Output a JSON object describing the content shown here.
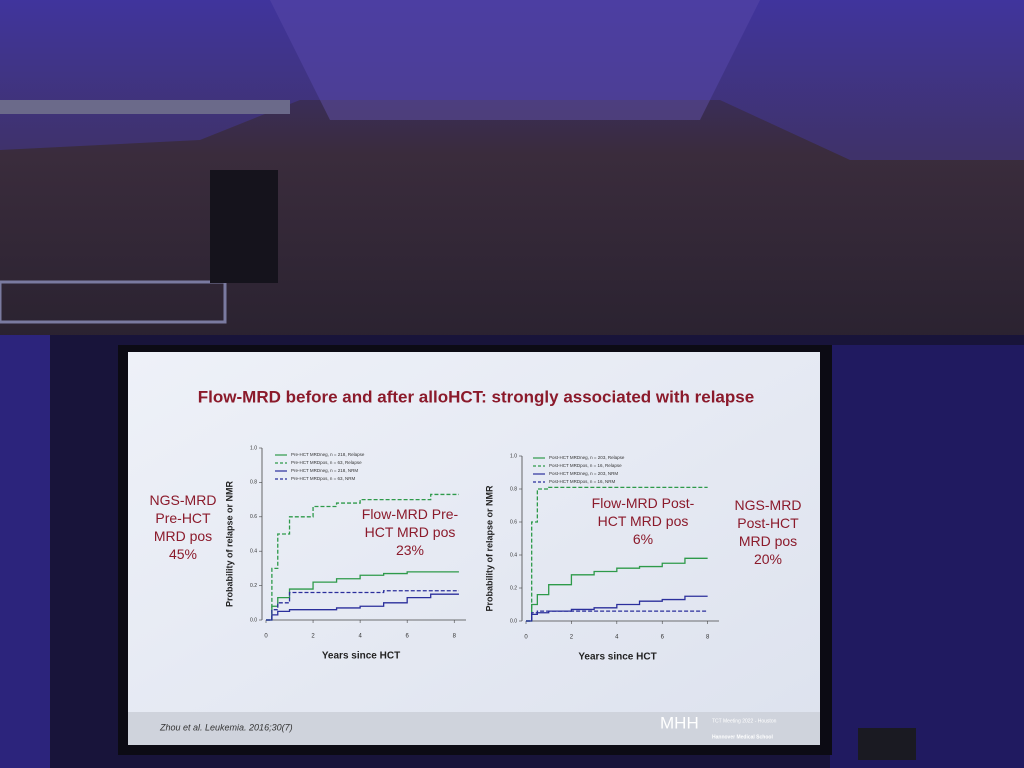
{
  "slide": {
    "title": "Flow-MRD before and after alloHCT: strongly associated with  relapse",
    "left_note": [
      "NGS-MRD",
      "Pre-HCT",
      "MRD pos",
      "45%"
    ],
    "right_note": [
      "NGS-MRD",
      "Post-HCT",
      "MRD pos",
      "20%"
    ],
    "citation": "Zhou et al. Leukemia. 2016;30(7)",
    "logo": "MHH",
    "meeting": "TCT Meeting 2022 - Houston",
    "school": "Hannover Medical School"
  },
  "chart_data": [
    {
      "type": "line",
      "annotation": [
        "Flow-MRD Pre-",
        "HCT MRD pos",
        "23%"
      ],
      "xlabel": "Years since HCT",
      "ylabel": "Probability of relapse or NMR",
      "x": [
        0,
        0.25,
        0.5,
        1,
        2,
        3,
        4,
        5,
        6,
        7,
        8.2
      ],
      "xlim": [
        0,
        8.5
      ],
      "xticks": [
        0,
        2,
        4,
        6,
        8
      ],
      "ylim": [
        0,
        1
      ],
      "yticks": [
        {
          "value": 0,
          "label": "0.0"
        },
        0.2,
        0.4,
        0.6,
        0.8,
        {
          "value": 1,
          "label": "1.0"
        }
      ],
      "series": [
        {
          "name": "Pre-HCT MRDneg, n = 218, Relapse",
          "color": "#2e9a4a",
          "linestyle": "solid",
          "values": [
            0,
            0.08,
            0.13,
            0.18,
            0.22,
            0.24,
            0.26,
            0.27,
            0.28,
            0.28,
            0.28
          ]
        },
        {
          "name": "Pre-HCT MRDpos, n = 63, Relapse",
          "color": "#2e9a4a",
          "linestyle": "dashed",
          "values": [
            0,
            0.3,
            0.5,
            0.6,
            0.66,
            0.68,
            0.7,
            0.7,
            0.7,
            0.73,
            0.73
          ]
        },
        {
          "name": "Pre-HCT MRDneg, n = 218, NRM",
          "color": "#2b2f9c",
          "linestyle": "solid",
          "values": [
            0,
            0.03,
            0.05,
            0.06,
            0.06,
            0.07,
            0.08,
            0.1,
            0.13,
            0.15,
            0.15
          ]
        },
        {
          "name": "Pre-HCT MRDpos, n = 63, NRM",
          "color": "#2b2f9c",
          "linestyle": "dashed",
          "values": [
            0,
            0.06,
            0.1,
            0.16,
            0.16,
            0.16,
            0.16,
            0.17,
            0.17,
            0.17,
            0.17
          ]
        }
      ]
    },
    {
      "type": "line",
      "annotation": [
        "Flow-MRD Post-",
        "HCT MRD pos",
        "6%"
      ],
      "xlabel": "Years since HCT",
      "ylabel": "Probability of relapse or NMR",
      "x": [
        0,
        0.25,
        0.5,
        1,
        2,
        3,
        4,
        5,
        6,
        7,
        8
      ],
      "xlim": [
        0,
        8.5
      ],
      "xticks": [
        0,
        2,
        4,
        6,
        8
      ],
      "ylim": [
        0,
        1
      ],
      "yticks": [
        {
          "value": 0,
          "label": "0.0"
        },
        0.2,
        0.4,
        0.6,
        0.8,
        {
          "value": 1,
          "label": "1.0"
        }
      ],
      "series": [
        {
          "name": "Post-HCT MRDneg, n = 203, Relapse",
          "color": "#2e9a4a",
          "linestyle": "solid",
          "values": [
            0,
            0.1,
            0.16,
            0.22,
            0.28,
            0.3,
            0.32,
            0.33,
            0.35,
            0.38,
            0.38
          ]
        },
        {
          "name": "Post-HCT MRDpos, n = 16, Relapse",
          "color": "#2e9a4a",
          "linestyle": "dashed",
          "values": [
            0,
            0.6,
            0.8,
            0.81,
            0.81,
            0.81,
            0.81,
            0.81,
            0.81,
            0.81,
            0.81
          ]
        },
        {
          "name": "Post-HCT MRDneg, n = 203, NRM",
          "color": "#2b2f9c",
          "linestyle": "solid",
          "values": [
            0,
            0.04,
            0.05,
            0.06,
            0.07,
            0.08,
            0.1,
            0.12,
            0.13,
            0.15,
            0.15
          ]
        },
        {
          "name": "Post-HCT MRDpos, n = 16, NRM",
          "color": "#2b2f9c",
          "linestyle": "dashed",
          "values": [
            0,
            0.05,
            0.06,
            0.06,
            0.06,
            0.06,
            0.06,
            0.06,
            0.06,
            0.06,
            0.06
          ]
        }
      ]
    }
  ]
}
